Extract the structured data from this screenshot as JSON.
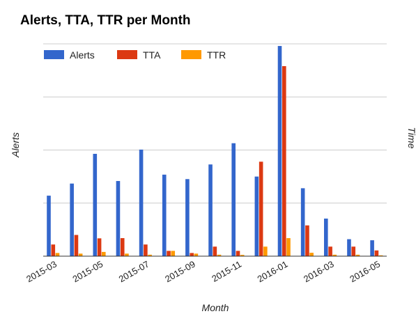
{
  "chart_data": {
    "type": "bar",
    "title": "Alerts, TTA, TTR per Month",
    "xlabel": "Month",
    "ylabel": "Alerts",
    "y2label": "Time",
    "legend_position": "top-left",
    "grid": true,
    "ylim": [
      0,
      100
    ],
    "categories": [
      "2015-03",
      "2015-04",
      "2015-05",
      "2015-06",
      "2015-07",
      "2015-08",
      "2015-09",
      "2015-10",
      "2015-11",
      "2015-12",
      "2016-01",
      "2016-02",
      "2016-03",
      "2016-04",
      "2016-05"
    ],
    "tick_labels": [
      "2015-03",
      "2015-05",
      "2015-07",
      "2015-09",
      "2015-11",
      "2016-01",
      "2016-03",
      "2016-05"
    ],
    "series": [
      {
        "name": "Alerts",
        "color": "#3366cc",
        "values": [
          28.5,
          34.2,
          48.2,
          35.4,
          50.2,
          38.4,
          36.3,
          43.2,
          53.2,
          37.5,
          99.0,
          32.0,
          17.7,
          8.0,
          7.5
        ]
      },
      {
        "name": "TTA",
        "color": "#dc3912",
        "values": [
          5.5,
          10.0,
          8.4,
          8.5,
          5.5,
          2.5,
          1.5,
          4.5,
          2.5,
          44.5,
          89.5,
          14.5,
          4.5,
          4.5,
          2.7
        ]
      },
      {
        "name": "TTR",
        "color": "#ff9900",
        "values": [
          1.5,
          1.2,
          2.0,
          1.2,
          0.7,
          2.5,
          1.2,
          0.7,
          0.6,
          4.5,
          8.5,
          1.6,
          0.7,
          0.7,
          0.4
        ]
      }
    ]
  }
}
